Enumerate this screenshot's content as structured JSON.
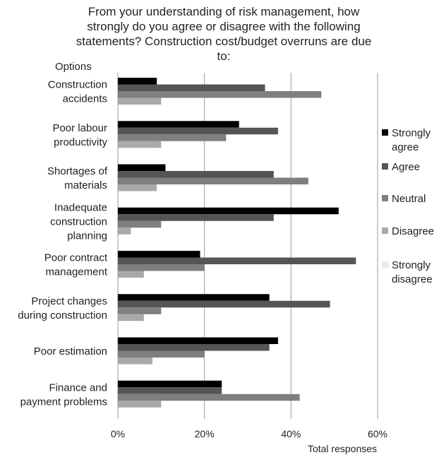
{
  "chart_data": {
    "type": "bar",
    "orientation": "horizontal",
    "title": "From your understanding of risk management, how strongly do you agree or disagree with the following statements? Construction cost/budget overruns are due to:",
    "title_lines": [
      "From your understanding of risk management, how",
      "strongly do you agree or disagree with the following",
      "statements? Construction cost/budget overruns are due",
      "to:"
    ],
    "ylabel": "Options",
    "xlabel": "Total responses",
    "xlim": [
      0,
      60
    ],
    "xticks": [
      0,
      20,
      40,
      60
    ],
    "xtick_labels": [
      "0%",
      "20%",
      "40%",
      "60%"
    ],
    "grid": true,
    "legend_position": "right",
    "categories": [
      [
        "Construction",
        "accidents"
      ],
      [
        "Poor labour",
        "productivity"
      ],
      [
        "Shortages of",
        "materials"
      ],
      [
        "Inadequate",
        "construction",
        "planning"
      ],
      [
        "Poor contract",
        "management"
      ],
      [
        "Project changes",
        "during construction"
      ],
      [
        "Poor estimation"
      ],
      [
        "Finance and",
        "payment problems"
      ]
    ],
    "series": [
      {
        "name": "Strongly agree",
        "legend_lines": [
          "Strongly",
          "agree"
        ],
        "color": "#000000",
        "values": [
          9,
          28,
          11,
          51,
          19,
          35,
          37,
          24
        ]
      },
      {
        "name": "Agree",
        "legend_lines": [
          "Agree"
        ],
        "color": "#555555",
        "values": [
          34,
          37,
          36,
          36,
          55,
          49,
          35,
          24
        ]
      },
      {
        "name": "Neutral",
        "legend_lines": [
          "Neutral"
        ],
        "color": "#7f7f7f",
        "values": [
          47,
          25,
          44,
          10,
          20,
          10,
          20,
          42
        ]
      },
      {
        "name": "Disagree",
        "legend_lines": [
          "Disagree"
        ],
        "color": "#a9a9a9",
        "values": [
          10,
          10,
          9,
          3,
          6,
          6,
          8,
          10
        ]
      },
      {
        "name": "Strongly disagree",
        "legend_lines": [
          "Strongly",
          "disagree"
        ],
        "color": "#eeeeee",
        "values": [
          0,
          0,
          0,
          0,
          0,
          0,
          0,
          0
        ]
      }
    ]
  }
}
